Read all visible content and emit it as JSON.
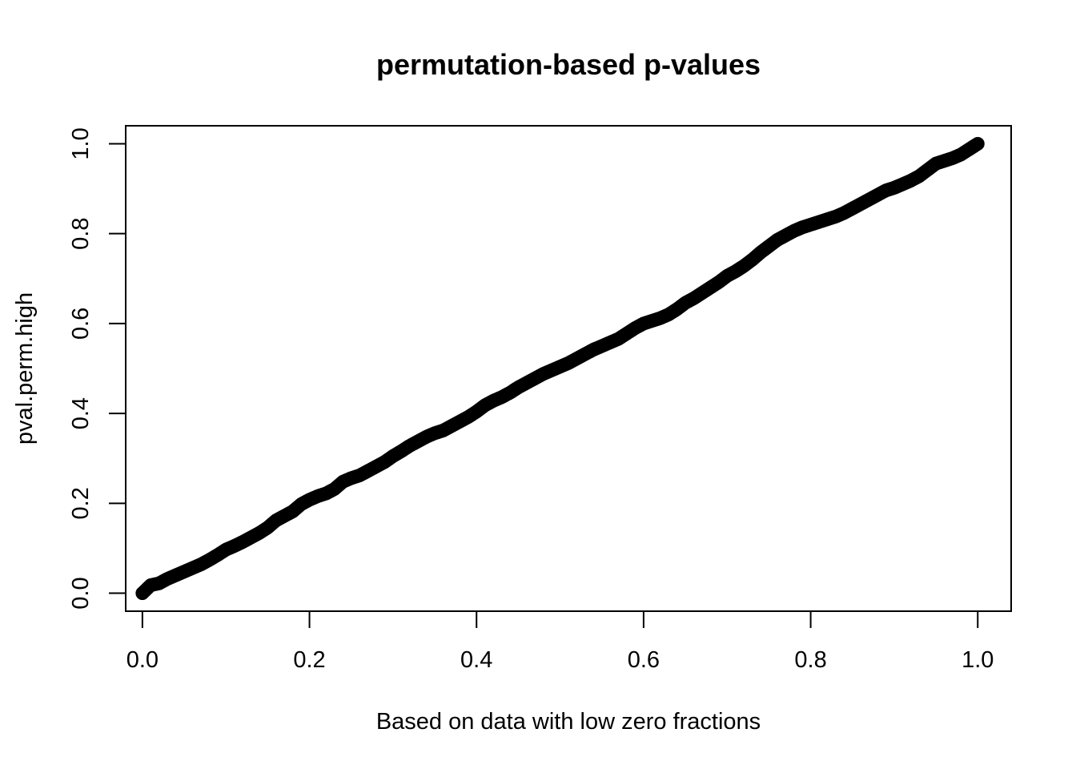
{
  "chart_data": {
    "type": "scatter",
    "title": "permutation-based p-values",
    "xlabel": "Based on data with low zero fractions",
    "ylabel": "pval.perm.high",
    "xlim": [
      -0.02,
      1.04
    ],
    "ylim": [
      -0.04,
      1.04
    ],
    "xticks": [
      0.0,
      0.2,
      0.4,
      0.6,
      0.8,
      1.0
    ],
    "xtick_labels": [
      "0.0",
      "0.2",
      "0.4",
      "0.6",
      "0.8",
      "1.0"
    ],
    "yticks": [
      0.0,
      0.2,
      0.4,
      0.6,
      0.8,
      1.0
    ],
    "ytick_labels": [
      "0.0",
      "0.2",
      "0.4",
      "0.6",
      "0.8",
      "1.0"
    ],
    "grid": false,
    "legend": "none",
    "point_color": "#000000",
    "series": [
      {
        "x": [
          0.0,
          0.01,
          0.02,
          0.03,
          0.04,
          0.05,
          0.06,
          0.07,
          0.08,
          0.09,
          0.1,
          0.11,
          0.12,
          0.13,
          0.14,
          0.15,
          0.16,
          0.17,
          0.18,
          0.19,
          0.2,
          0.21,
          0.22,
          0.23,
          0.24,
          0.25,
          0.26,
          0.27,
          0.28,
          0.29,
          0.3,
          0.31,
          0.32,
          0.33,
          0.34,
          0.35,
          0.36,
          0.37,
          0.38,
          0.39,
          0.4,
          0.41,
          0.42,
          0.43,
          0.44,
          0.45,
          0.46,
          0.47,
          0.48,
          0.49,
          0.5,
          0.51,
          0.52,
          0.53,
          0.54,
          0.55,
          0.56,
          0.57,
          0.58,
          0.59,
          0.6,
          0.61,
          0.62,
          0.63,
          0.64,
          0.65,
          0.66,
          0.67,
          0.68,
          0.69,
          0.7,
          0.71,
          0.72,
          0.73,
          0.74,
          0.75,
          0.76,
          0.77,
          0.78,
          0.79,
          0.8,
          0.81,
          0.82,
          0.83,
          0.84,
          0.85,
          0.86,
          0.87,
          0.88,
          0.89,
          0.9,
          0.91,
          0.92,
          0.93,
          0.94,
          0.95,
          0.96,
          0.97,
          0.98,
          0.99,
          1.0
        ],
        "y": [
          0.0,
          0.018,
          0.022,
          0.032,
          0.04,
          0.048,
          0.056,
          0.064,
          0.074,
          0.085,
          0.097,
          0.105,
          0.114,
          0.124,
          0.134,
          0.146,
          0.162,
          0.172,
          0.182,
          0.198,
          0.208,
          0.216,
          0.222,
          0.232,
          0.248,
          0.256,
          0.262,
          0.272,
          0.282,
          0.292,
          0.305,
          0.316,
          0.328,
          0.338,
          0.348,
          0.356,
          0.362,
          0.372,
          0.382,
          0.392,
          0.404,
          0.418,
          0.428,
          0.436,
          0.446,
          0.458,
          0.468,
          0.478,
          0.488,
          0.496,
          0.504,
          0.512,
          0.522,
          0.532,
          0.542,
          0.55,
          0.558,
          0.566,
          0.578,
          0.59,
          0.6,
          0.606,
          0.612,
          0.62,
          0.632,
          0.646,
          0.656,
          0.668,
          0.68,
          0.692,
          0.706,
          0.716,
          0.728,
          0.742,
          0.758,
          0.772,
          0.786,
          0.796,
          0.806,
          0.814,
          0.82,
          0.826,
          0.832,
          0.838,
          0.846,
          0.856,
          0.866,
          0.876,
          0.886,
          0.896,
          0.902,
          0.91,
          0.918,
          0.928,
          0.942,
          0.956,
          0.962,
          0.968,
          0.976,
          0.988,
          1.0
        ]
      }
    ]
  }
}
